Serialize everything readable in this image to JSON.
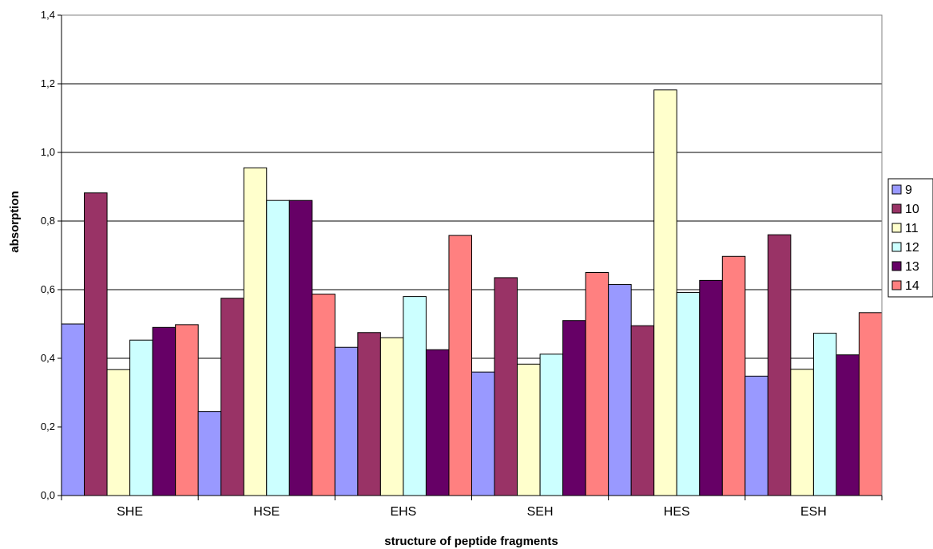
{
  "chart_data": {
    "type": "bar",
    "title": "",
    "xlabel": "structure of peptide fragments",
    "ylabel": "absorption",
    "ylim": [
      0,
      1.4
    ],
    "yticks": [
      "0,0",
      "0,2",
      "0,4",
      "0,6",
      "0,8",
      "1,0",
      "1,2",
      "1,4"
    ],
    "grid": true,
    "legend_position": "right",
    "categories": [
      "SHE",
      "HSE",
      "EHS",
      "SEH",
      "HES",
      "ESH"
    ],
    "series": [
      {
        "name": "9",
        "color": "#9999ff",
        "values": [
          0.5,
          0.245,
          0.432,
          0.36,
          0.615,
          0.348
        ]
      },
      {
        "name": "10",
        "color": "#993366",
        "values": [
          0.882,
          0.575,
          0.475,
          0.635,
          0.495,
          0.76
        ]
      },
      {
        "name": "11",
        "color": "#ffffcc",
        "values": [
          0.367,
          0.955,
          0.46,
          0.383,
          1.182,
          0.368
        ]
      },
      {
        "name": "12",
        "color": "#ccffff",
        "values": [
          0.453,
          0.86,
          0.58,
          0.412,
          0.592,
          0.473
        ]
      },
      {
        "name": "13",
        "color": "#660066",
        "values": [
          0.49,
          0.86,
          0.425,
          0.51,
          0.627,
          0.41
        ]
      },
      {
        "name": "14",
        "color": "#ff8080",
        "values": [
          0.498,
          0.587,
          0.758,
          0.65,
          0.697,
          0.533
        ]
      }
    ]
  }
}
